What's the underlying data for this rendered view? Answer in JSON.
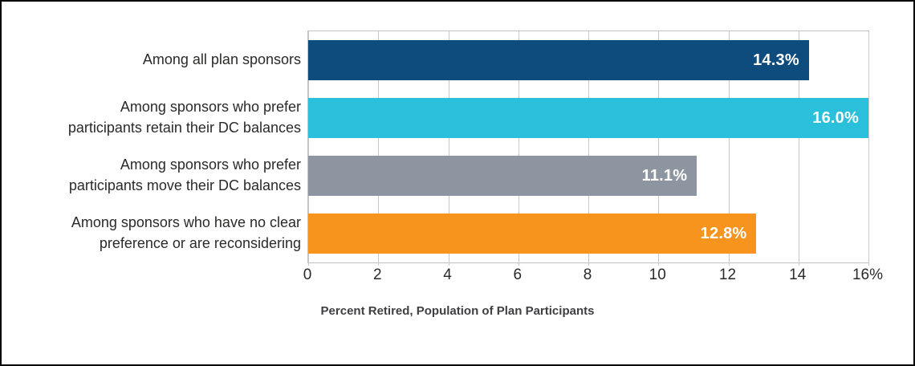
{
  "chart_data": {
    "type": "bar",
    "orientation": "horizontal",
    "title": "",
    "xlabel": "Percent Retired, Population of Plan Participants",
    "ylabel": "",
    "xlim": [
      0,
      16
    ],
    "xticks": [
      0,
      2,
      4,
      6,
      8,
      10,
      12,
      14,
      16
    ],
    "xtick_labels": [
      "0",
      "2",
      "4",
      "6",
      "8",
      "10",
      "12",
      "14",
      "16%"
    ],
    "grid": true,
    "legend": false,
    "categories": [
      "Among all plan sponsors",
      "Among sponsors who prefer\nparticipants retain their DC balances",
      "Among sponsors who prefer\nparticipants move their DC balances",
      "Among sponsors who have no clear\npreference or are reconsidering"
    ],
    "values": [
      14.3,
      16.0,
      11.1,
      12.8
    ],
    "bar_labels": [
      "14.3%",
      "16.0%",
      "11.1%",
      "12.8%"
    ],
    "bar_colors": [
      "#0e4c7d",
      "#2abfda",
      "#8d95a0",
      "#f7941e"
    ],
    "bar_label_color": "#ffffff",
    "axis_text_color": "#2b2a29",
    "grid_color": "#c9c9c9",
    "plot_border_color": "#c2c2c2",
    "frame_color": "#000000"
  }
}
